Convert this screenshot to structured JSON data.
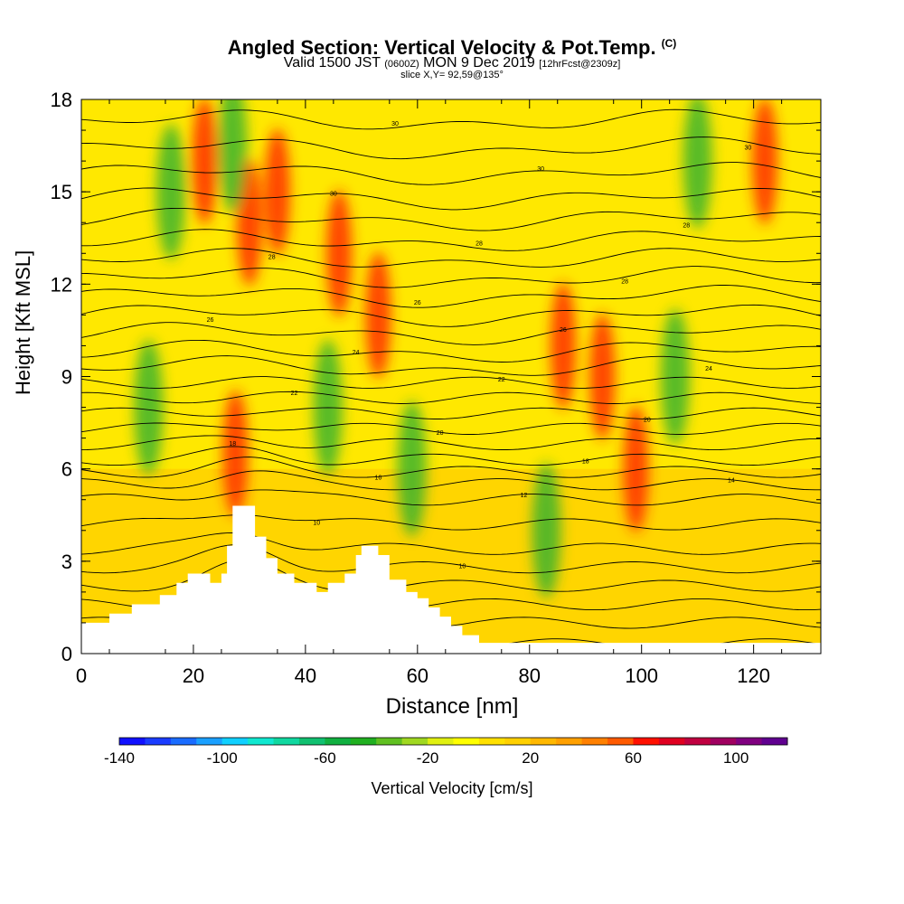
{
  "header": {
    "title": "Angled Section: Vertical Velocity & Pot.Temp.",
    "title_units": "(C)",
    "valid_main": "Valid 1500 JST",
    "valid_utc": "(0600Z)",
    "valid_date": "MON 9 Dec 2019",
    "forecast": "[12hrFcst@2309z]",
    "slice": "slice X,Y= 92,59@135°"
  },
  "chart_data": {
    "type": "heatmap",
    "title": "Angled Section: Vertical Velocity & Pot.Temp.",
    "xlabel": "Distance [nm]",
    "ylabel": "Height [Kft MSL]",
    "xlim": [
      0,
      132
    ],
    "ylim": [
      0,
      18
    ],
    "x_ticks": [
      0,
      20,
      40,
      60,
      80,
      100,
      120
    ],
    "y_ticks": [
      0,
      3,
      6,
      9,
      12,
      15,
      18
    ],
    "colorbar": {
      "label": "Vertical Velocity [cm/s]",
      "tick_labels": [
        -140,
        -100,
        -60,
        -20,
        20,
        60,
        100
      ],
      "range": [
        -140,
        120
      ],
      "step": 10,
      "colors": [
        "#1010ff",
        "#1a3cff",
        "#1a6cff",
        "#1aa0ff",
        "#10d0ff",
        "#10e8d0",
        "#10d8a0",
        "#10c070",
        "#10b040",
        "#20b020",
        "#60c020",
        "#a0d820",
        "#e0f010",
        "#ffff00",
        "#ffe000",
        "#ffd000",
        "#ffb800",
        "#ffa000",
        "#ff8000",
        "#ff5a00",
        "#ff1000",
        "#e00020",
        "#c00040",
        "#a00060",
        "#800080",
        "#600090"
      ]
    },
    "terrain": [
      [
        0,
        1.0
      ],
      [
        5,
        1.0
      ],
      [
        5,
        1.3
      ],
      [
        9,
        1.3
      ],
      [
        9,
        1.6
      ],
      [
        14,
        1.6
      ],
      [
        14,
        1.9
      ],
      [
        17,
        1.9
      ],
      [
        17,
        2.3
      ],
      [
        19,
        2.3
      ],
      [
        19,
        2.6
      ],
      [
        23,
        2.6
      ],
      [
        23,
        2.3
      ],
      [
        25,
        2.3
      ],
      [
        25,
        2.6
      ],
      [
        26,
        2.6
      ],
      [
        26,
        3.5
      ],
      [
        27,
        3.5
      ],
      [
        27,
        4.8
      ],
      [
        31,
        4.8
      ],
      [
        31,
        3.8
      ],
      [
        33,
        3.8
      ],
      [
        33,
        3.1
      ],
      [
        35,
        3.1
      ],
      [
        35,
        2.6
      ],
      [
        38,
        2.6
      ],
      [
        38,
        2.3
      ],
      [
        42,
        2.3
      ],
      [
        42,
        2.0
      ],
      [
        44,
        2.0
      ],
      [
        44,
        2.3
      ],
      [
        47,
        2.3
      ],
      [
        47,
        2.6
      ],
      [
        49,
        2.6
      ],
      [
        49,
        3.2
      ],
      [
        50,
        3.2
      ],
      [
        50,
        3.5
      ],
      [
        53,
        3.5
      ],
      [
        53,
        3.2
      ],
      [
        55,
        3.2
      ],
      [
        55,
        2.4
      ],
      [
        58,
        2.4
      ],
      [
        58,
        2.0
      ],
      [
        60,
        2.0
      ],
      [
        60,
        1.8
      ],
      [
        62,
        1.8
      ],
      [
        62,
        1.5
      ],
      [
        64,
        1.5
      ],
      [
        64,
        1.2
      ],
      [
        66,
        1.2
      ],
      [
        66,
        0.9
      ],
      [
        68,
        0.9
      ],
      [
        68,
        0.6
      ],
      [
        71,
        0.6
      ],
      [
        71,
        0.35
      ],
      [
        132,
        0.35
      ]
    ],
    "updrafts": [
      [
        22,
        16
      ],
      [
        27.5,
        6.5
      ],
      [
        30,
        14
      ],
      [
        35,
        15
      ],
      [
        46,
        13
      ],
      [
        53,
        11
      ],
      [
        86,
        10
      ],
      [
        93,
        9
      ],
      [
        99,
        6
      ],
      [
        122,
        16
      ]
    ],
    "downdrafts": [
      [
        16,
        15
      ],
      [
        12,
        8
      ],
      [
        27,
        16.5
      ],
      [
        44,
        8
      ],
      [
        59,
        6
      ],
      [
        110,
        16
      ],
      [
        106,
        9
      ],
      [
        83,
        4
      ]
    ],
    "theta_contours": [
      {
        "base": 0.3,
        "label": ""
      },
      {
        "base": 1.0,
        "label": ""
      },
      {
        "base": 1.6,
        "label": ""
      },
      {
        "base": 2.2,
        "label": ""
      },
      {
        "base": 2.8,
        "label": "10"
      },
      {
        "base": 3.4,
        "label": ""
      },
      {
        "base": 4.2,
        "label": "10"
      },
      {
        "base": 5.0,
        "label": "12"
      },
      {
        "base": 5.5,
        "label": "14"
      },
      {
        "base": 5.9,
        "label": "16"
      },
      {
        "base": 6.3,
        "label": "18"
      },
      {
        "base": 6.8,
        "label": "18"
      },
      {
        "base": 7.3,
        "label": "20"
      },
      {
        "base": 7.8,
        "label": "20"
      },
      {
        "base": 8.3,
        "label": "22"
      },
      {
        "base": 8.8,
        "label": "22"
      },
      {
        "base": 9.3,
        "label": "24"
      },
      {
        "base": 9.8,
        "label": "24"
      },
      {
        "base": 10.4,
        "label": "26"
      },
      {
        "base": 11.0,
        "label": "26"
      },
      {
        "base": 11.6,
        "label": "26"
      },
      {
        "base": 12.2,
        "label": "28"
      },
      {
        "base": 12.8,
        "label": "28"
      },
      {
        "base": 13.4,
        "label": "28"
      },
      {
        "base": 14.1,
        "label": "28"
      },
      {
        "base": 14.8,
        "label": "30"
      },
      {
        "base": 15.6,
        "label": "30"
      },
      {
        "base": 16.4,
        "label": "30"
      },
      {
        "base": 17.3,
        "label": "30"
      }
    ]
  }
}
